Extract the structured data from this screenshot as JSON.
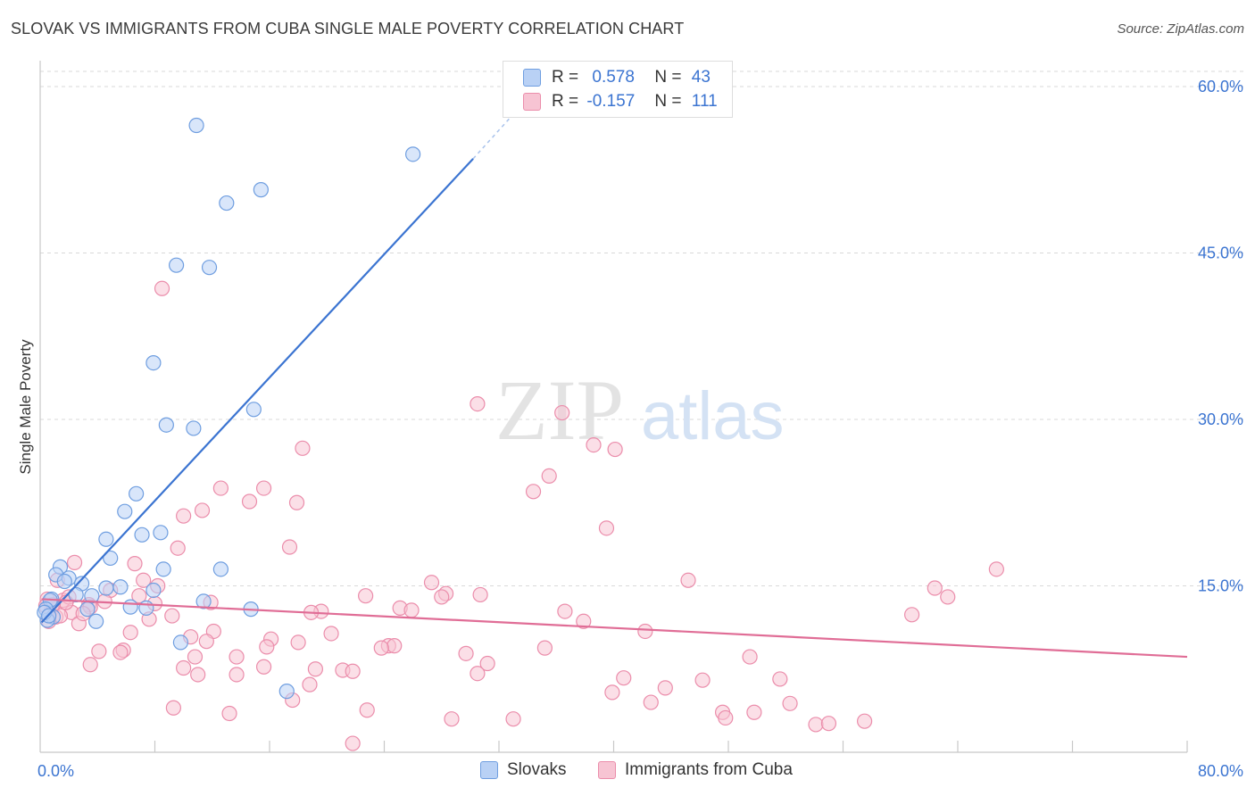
{
  "title": "SLOVAK VS IMMIGRANTS FROM CUBA SINGLE MALE POVERTY CORRELATION CHART",
  "source": "Source: ZipAtlas.com",
  "watermark": {
    "zip": "ZIP",
    "atlas": "atlas"
  },
  "legend": {
    "r_label": "R =",
    "n_label": "N =",
    "rows": [
      {
        "r": "0.578",
        "n": "43"
      },
      {
        "r": "-0.157",
        "n": "111"
      }
    ]
  },
  "colors": {
    "blue_fill": "#b9d1f5",
    "blue_stroke": "#6f9ee0",
    "blue_line": "#3b74d1",
    "pink_fill": "#f7c4d3",
    "pink_stroke": "#eb8dab",
    "pink_line": "#e06d96",
    "grid": "#d9d9d9",
    "axis_text": "#3b74d1"
  },
  "chart_data": {
    "type": "scatter",
    "title": "SLOVAK VS IMMIGRANTS FROM CUBA SINGLE MALE POVERTY CORRELATION CHART",
    "xlabel": "",
    "ylabel": "Single Male Poverty",
    "xlim": [
      0,
      80
    ],
    "ylim": [
      0,
      60
    ],
    "x_tick_labels": [
      "0.0%",
      "80.0%"
    ],
    "y_ticks": [
      15,
      30,
      45,
      60
    ],
    "y_tick_labels": [
      "15.0%",
      "30.0%",
      "45.0%",
      "60.0%"
    ],
    "series": [
      {
        "name": "Slovaks",
        "r": 0.578,
        "n": 43,
        "trend": {
          "x": [
            0.1,
            30.2
          ],
          "y": [
            11.7,
            53.5
          ]
        },
        "trend_dashed": {
          "x": [
            30.2,
            33.0
          ],
          "y": [
            53.5,
            57.5
          ]
        },
        "points": [
          [
            10.9,
            56.5
          ],
          [
            26.0,
            53.9
          ],
          [
            15.4,
            50.7
          ],
          [
            13.0,
            49.5
          ],
          [
            9.5,
            43.9
          ],
          [
            11.8,
            43.7
          ],
          [
            7.9,
            35.1
          ],
          [
            14.9,
            30.9
          ],
          [
            8.8,
            29.5
          ],
          [
            10.7,
            29.2
          ],
          [
            6.7,
            23.3
          ],
          [
            5.9,
            21.7
          ],
          [
            8.4,
            19.8
          ],
          [
            7.1,
            19.6
          ],
          [
            4.6,
            19.2
          ],
          [
            4.9,
            17.5
          ],
          [
            1.4,
            16.7
          ],
          [
            8.6,
            16.5
          ],
          [
            12.6,
            16.5
          ],
          [
            1.1,
            16.0
          ],
          [
            2.0,
            15.7
          ],
          [
            1.7,
            15.4
          ],
          [
            2.9,
            15.2
          ],
          [
            5.6,
            14.9
          ],
          [
            4.6,
            14.8
          ],
          [
            7.9,
            14.6
          ],
          [
            2.5,
            14.2
          ],
          [
            3.6,
            14.1
          ],
          [
            0.8,
            13.8
          ],
          [
            0.7,
            13.7
          ],
          [
            11.4,
            13.6
          ],
          [
            6.3,
            13.1
          ],
          [
            7.4,
            13.0
          ],
          [
            14.7,
            12.9
          ],
          [
            3.3,
            12.9
          ],
          [
            0.4,
            12.9
          ],
          [
            0.9,
            12.2
          ],
          [
            0.5,
            11.9
          ],
          [
            0.3,
            12.6
          ],
          [
            0.6,
            12.3
          ],
          [
            3.9,
            11.8
          ],
          [
            9.8,
            9.9
          ],
          [
            17.2,
            5.5
          ]
        ]
      },
      {
        "name": "Immigrants from Cuba",
        "r": -0.157,
        "n": 111,
        "trend": {
          "x": [
            0.1,
            80.0
          ],
          "y": [
            13.8,
            8.6
          ]
        },
        "points": [
          [
            8.5,
            41.8
          ],
          [
            30.5,
            31.4
          ],
          [
            36.4,
            30.6
          ],
          [
            18.3,
            27.4
          ],
          [
            38.6,
            27.7
          ],
          [
            40.1,
            27.3
          ],
          [
            35.5,
            24.9
          ],
          [
            34.4,
            23.5
          ],
          [
            12.6,
            23.8
          ],
          [
            15.6,
            23.8
          ],
          [
            14.6,
            22.6
          ],
          [
            17.9,
            22.5
          ],
          [
            11.3,
            21.8
          ],
          [
            10.0,
            21.3
          ],
          [
            39.5,
            20.2
          ],
          [
            9.6,
            18.4
          ],
          [
            17.4,
            18.5
          ],
          [
            2.4,
            17.1
          ],
          [
            6.6,
            17.0
          ],
          [
            66.7,
            16.5
          ],
          [
            45.2,
            15.5
          ],
          [
            1.2,
            15.5
          ],
          [
            7.2,
            15.5
          ],
          [
            8.2,
            15.0
          ],
          [
            27.3,
            15.3
          ],
          [
            62.4,
            14.8
          ],
          [
            4.9,
            14.6
          ],
          [
            6.9,
            14.1
          ],
          [
            22.7,
            14.1
          ],
          [
            28.3,
            14.3
          ],
          [
            30.7,
            14.2
          ],
          [
            63.3,
            14.0
          ],
          [
            28.0,
            14.0
          ],
          [
            0.5,
            13.8
          ],
          [
            1.6,
            13.7
          ],
          [
            4.5,
            13.6
          ],
          [
            11.9,
            13.5
          ],
          [
            8.0,
            13.4
          ],
          [
            3.4,
            13.3
          ],
          [
            3.5,
            13.1
          ],
          [
            25.1,
            13.0
          ],
          [
            36.6,
            12.7
          ],
          [
            0.8,
            12.9
          ],
          [
            25.9,
            12.8
          ],
          [
            2.2,
            12.6
          ],
          [
            19.6,
            12.7
          ],
          [
            18.9,
            12.6
          ],
          [
            60.8,
            12.4
          ],
          [
            9.2,
            12.3
          ],
          [
            1.1,
            12.2
          ],
          [
            7.6,
            12.0
          ],
          [
            37.9,
            11.8
          ],
          [
            2.7,
            11.6
          ],
          [
            42.2,
            10.9
          ],
          [
            10.5,
            10.4
          ],
          [
            20.3,
            10.7
          ],
          [
            6.3,
            10.8
          ],
          [
            12.1,
            10.9
          ],
          [
            16.1,
            10.2
          ],
          [
            18.0,
            9.9
          ],
          [
            11.6,
            10.0
          ],
          [
            24.3,
            9.6
          ],
          [
            24.7,
            9.6
          ],
          [
            15.8,
            9.5
          ],
          [
            35.2,
            9.4
          ],
          [
            23.8,
            9.4
          ],
          [
            5.8,
            9.2
          ],
          [
            4.1,
            9.1
          ],
          [
            5.6,
            9.0
          ],
          [
            29.7,
            8.9
          ],
          [
            49.5,
            8.6
          ],
          [
            10.8,
            8.6
          ],
          [
            13.7,
            8.6
          ],
          [
            31.2,
            8.0
          ],
          [
            3.5,
            7.9
          ],
          [
            10.0,
            7.6
          ],
          [
            15.6,
            7.7
          ],
          [
            19.2,
            7.5
          ],
          [
            21.1,
            7.4
          ],
          [
            21.8,
            7.3
          ],
          [
            30.5,
            7.1
          ],
          [
            11.0,
            7.0
          ],
          [
            13.7,
            7.0
          ],
          [
            40.7,
            6.7
          ],
          [
            43.6,
            5.8
          ],
          [
            51.6,
            6.6
          ],
          [
            46.2,
            6.5
          ],
          [
            18.8,
            6.1
          ],
          [
            39.9,
            5.4
          ],
          [
            17.6,
            4.7
          ],
          [
            42.6,
            4.5
          ],
          [
            52.3,
            4.4
          ],
          [
            9.3,
            4.0
          ],
          [
            13.2,
            3.5
          ],
          [
            22.8,
            3.8
          ],
          [
            47.6,
            3.6
          ],
          [
            49.8,
            3.6
          ],
          [
            28.7,
            3.0
          ],
          [
            33.0,
            3.0
          ],
          [
            47.8,
            3.1
          ],
          [
            54.1,
            2.5
          ],
          [
            55.0,
            2.6
          ],
          [
            57.5,
            2.8
          ],
          [
            21.8,
            0.8
          ],
          [
            1.4,
            12.3
          ],
          [
            3.0,
            12.5
          ],
          [
            0.4,
            13.2
          ],
          [
            0.6,
            11.8
          ],
          [
            2.0,
            14.0
          ],
          [
            1.8,
            13.5
          ],
          [
            0.9,
            13.3
          ]
        ]
      }
    ]
  }
}
